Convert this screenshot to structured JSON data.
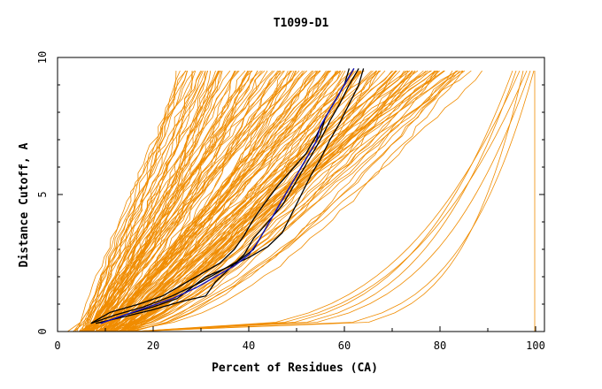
{
  "chart_data": {
    "type": "line",
    "title": "T1099-D1",
    "xlabel": "Percent of Residues (CA)",
    "ylabel": "Distance Cutoff, A",
    "xlim": [
      0,
      100
    ],
    "ylim": [
      0,
      10
    ],
    "xticks": [
      "0",
      "20",
      "40",
      "60",
      "80",
      "100"
    ],
    "yticks": [
      "0",
      "5",
      "10"
    ],
    "grid": false,
    "legend": "none",
    "colors": {
      "models": "#f08c00",
      "reference": "#1010c0",
      "highlight": "#000000",
      "axes": "#000000"
    },
    "series": [
      {
        "role": "highlight",
        "points": [
          [
            7,
            0.3
          ],
          [
            12,
            0.6
          ],
          [
            18,
            0.9
          ],
          [
            24,
            1.3
          ],
          [
            30,
            1.8
          ],
          [
            34,
            2.2
          ],
          [
            38,
            2.6
          ],
          [
            41,
            3.0
          ],
          [
            43,
            3.6
          ],
          [
            45,
            4.2
          ],
          [
            47,
            4.8
          ],
          [
            49,
            5.4
          ],
          [
            51,
            6.0
          ],
          [
            53,
            6.6
          ],
          [
            55,
            7.2
          ],
          [
            56,
            7.8
          ],
          [
            58,
            8.4
          ],
          [
            60,
            9.0
          ],
          [
            62,
            9.6
          ]
        ]
      },
      {
        "role": "highlight",
        "points": [
          [
            8,
            0.3
          ],
          [
            13,
            0.5
          ],
          [
            20,
            0.8
          ],
          [
            26,
            1.1
          ],
          [
            31,
            1.3
          ],
          [
            33,
            1.8
          ],
          [
            36,
            2.3
          ],
          [
            39,
            2.8
          ],
          [
            41,
            3.4
          ],
          [
            44,
            4.0
          ],
          [
            47,
            4.6
          ],
          [
            49,
            5.2
          ],
          [
            51,
            5.8
          ],
          [
            53,
            6.4
          ],
          [
            55,
            7.0
          ],
          [
            57,
            7.7
          ],
          [
            59,
            8.3
          ],
          [
            61,
            9.0
          ],
          [
            63,
            9.6
          ]
        ]
      },
      {
        "role": "highlight",
        "points": [
          [
            7,
            0.3
          ],
          [
            11,
            0.7
          ],
          [
            17,
            1.0
          ],
          [
            22,
            1.3
          ],
          [
            26,
            1.7
          ],
          [
            30,
            2.1
          ],
          [
            34,
            2.5
          ],
          [
            37,
            3.0
          ],
          [
            39,
            3.5
          ],
          [
            41,
            4.1
          ],
          [
            43,
            4.6
          ],
          [
            46,
            5.3
          ],
          [
            49,
            5.9
          ],
          [
            52,
            6.5
          ],
          [
            54,
            7.1
          ],
          [
            56,
            7.8
          ],
          [
            58,
            8.4
          ],
          [
            60,
            9.0
          ],
          [
            61,
            9.6
          ]
        ]
      },
      {
        "role": "highlight",
        "points": [
          [
            9,
            0.3
          ],
          [
            14,
            0.6
          ],
          [
            20,
            0.9
          ],
          [
            25,
            1.2
          ],
          [
            28,
            1.6
          ],
          [
            31,
            2.0
          ],
          [
            35,
            2.3
          ],
          [
            40,
            2.7
          ],
          [
            44,
            3.1
          ],
          [
            47,
            3.6
          ],
          [
            49,
            4.3
          ],
          [
            51,
            5.0
          ],
          [
            53,
            5.7
          ],
          [
            55,
            6.3
          ],
          [
            57,
            7.0
          ],
          [
            59,
            7.6
          ],
          [
            61,
            8.3
          ],
          [
            63,
            9.0
          ],
          [
            64,
            9.6
          ]
        ]
      },
      {
        "role": "reference",
        "points": [
          [
            9,
            0.3
          ],
          [
            14,
            0.6
          ],
          [
            19,
            0.9
          ],
          [
            24,
            1.2
          ],
          [
            29,
            1.6
          ],
          [
            33,
            2.0
          ],
          [
            37,
            2.4
          ],
          [
            40,
            2.8
          ],
          [
            42,
            3.3
          ],
          [
            44,
            3.9
          ],
          [
            46,
            4.5
          ],
          [
            48,
            5.1
          ],
          [
            50,
            5.7
          ],
          [
            52,
            6.3
          ],
          [
            54,
            6.9
          ],
          [
            55,
            7.5
          ],
          [
            57,
            8.1
          ],
          [
            59,
            8.7
          ],
          [
            61,
            9.3
          ],
          [
            62,
            9.6
          ]
        ]
      }
    ]
  }
}
